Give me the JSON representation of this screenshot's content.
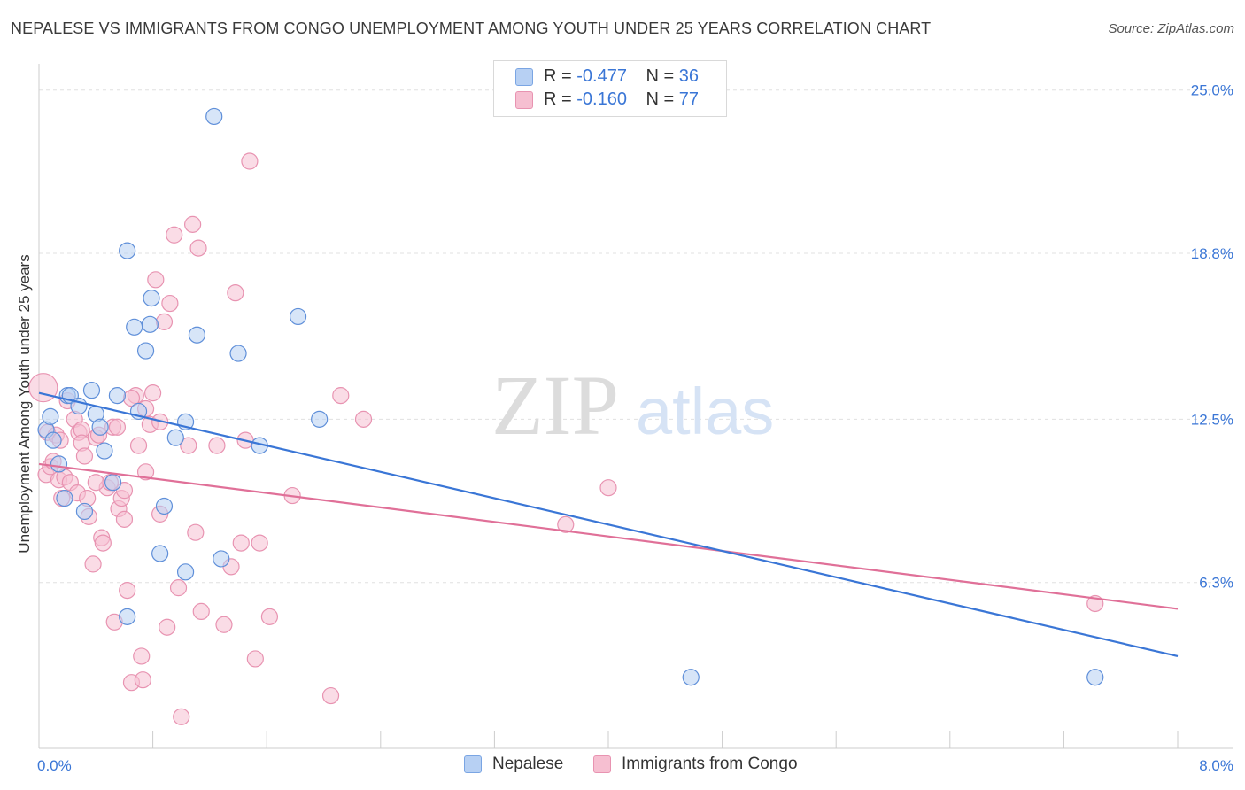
{
  "colors": {
    "blue": "#3a76d6",
    "blue_fill": "#b7d0f3",
    "pink": "#e07098",
    "pink_fill": "#f6bfd1",
    "grid": "#e0e0e0"
  },
  "chart_data": {
    "type": "scatter",
    "title": "NEPALESE VS IMMIGRANTS FROM CONGO UNEMPLOYMENT AMONG YOUTH UNDER 25 YEARS CORRELATION CHART",
    "source": "Source: ZipAtlas.com",
    "watermark": {
      "zip": "ZIP",
      "atlas": "atlas"
    },
    "xlabel": "",
    "ylabel": "Unemployment Among Youth under 25 years",
    "xlim": [
      0,
      8
    ],
    "ylim": [
      0,
      26
    ],
    "x_tick_labels": {
      "min": "0.0%",
      "max": "8.0%"
    },
    "y_ticks": [
      {
        "value": 6.3,
        "label": "6.3%"
      },
      {
        "value": 12.5,
        "label": "12.5%"
      },
      {
        "value": 18.8,
        "label": "18.8%"
      },
      {
        "value": 25.0,
        "label": "25.0%"
      }
    ],
    "legend_stats": [
      {
        "r_label": "R =",
        "r_value": "-0.477",
        "n_label": "N =",
        "n_value": "36"
      },
      {
        "r_label": "R =",
        "r_value": "-0.160",
        "n_label": "N =",
        "n_value": "77"
      }
    ],
    "series": [
      {
        "name": "Nepalese",
        "trend": {
          "x0": 0.0,
          "y0": 13.5,
          "x1": 8.0,
          "y1": 3.5
        },
        "points": [
          [
            0.05,
            12.1
          ],
          [
            0.08,
            12.6
          ],
          [
            0.1,
            11.7
          ],
          [
            0.14,
            10.8
          ],
          [
            0.18,
            9.5
          ],
          [
            0.2,
            13.4
          ],
          [
            0.22,
            13.4
          ],
          [
            0.28,
            13.0
          ],
          [
            0.32,
            9.0
          ],
          [
            0.37,
            13.6
          ],
          [
            0.4,
            12.7
          ],
          [
            0.43,
            12.2
          ],
          [
            0.46,
            11.3
          ],
          [
            0.52,
            10.1
          ],
          [
            0.55,
            13.4
          ],
          [
            0.62,
            18.9
          ],
          [
            0.62,
            5.0
          ],
          [
            0.67,
            16.0
          ],
          [
            0.7,
            12.8
          ],
          [
            0.75,
            15.1
          ],
          [
            0.78,
            16.1
          ],
          [
            0.79,
            17.1
          ],
          [
            0.85,
            7.4
          ],
          [
            0.88,
            9.2
          ],
          [
            0.96,
            11.8
          ],
          [
            1.03,
            12.4
          ],
          [
            1.03,
            6.7
          ],
          [
            1.11,
            15.7
          ],
          [
            1.23,
            24.0
          ],
          [
            1.28,
            7.2
          ],
          [
            1.4,
            15.0
          ],
          [
            1.55,
            11.5
          ],
          [
            1.82,
            16.4
          ],
          [
            1.97,
            12.5
          ],
          [
            4.58,
            2.7
          ],
          [
            7.42,
            2.7
          ]
        ]
      },
      {
        "name": "Immigrants from Congo",
        "trend": {
          "x0": 0.0,
          "y0": 10.8,
          "x1": 8.0,
          "y1": 5.3
        },
        "points": [
          [
            0.03,
            13.7
          ],
          [
            0.05,
            10.4
          ],
          [
            0.06,
            12.0
          ],
          [
            0.08,
            10.7
          ],
          [
            0.1,
            10.9
          ],
          [
            0.12,
            11.9
          ],
          [
            0.14,
            10.2
          ],
          [
            0.16,
            9.5
          ],
          [
            0.18,
            10.3
          ],
          [
            0.2,
            13.2
          ],
          [
            0.22,
            10.1
          ],
          [
            0.25,
            12.5
          ],
          [
            0.27,
            9.7
          ],
          [
            0.28,
            12.0
          ],
          [
            0.3,
            12.1
          ],
          [
            0.3,
            11.6
          ],
          [
            0.32,
            11.1
          ],
          [
            0.34,
            9.5
          ],
          [
            0.35,
            8.8
          ],
          [
            0.38,
            7.0
          ],
          [
            0.4,
            11.8
          ],
          [
            0.42,
            11.9
          ],
          [
            0.44,
            8.0
          ],
          [
            0.45,
            7.8
          ],
          [
            0.48,
            9.9
          ],
          [
            0.5,
            10.1
          ],
          [
            0.52,
            12.2
          ],
          [
            0.53,
            4.8
          ],
          [
            0.56,
            9.1
          ],
          [
            0.58,
            9.5
          ],
          [
            0.6,
            9.8
          ],
          [
            0.6,
            8.7
          ],
          [
            0.62,
            6.0
          ],
          [
            0.65,
            2.5
          ],
          [
            0.68,
            13.4
          ],
          [
            0.7,
            11.5
          ],
          [
            0.72,
            3.5
          ],
          [
            0.73,
            2.6
          ],
          [
            0.75,
            10.5
          ],
          [
            0.75,
            12.9
          ],
          [
            0.78,
            12.3
          ],
          [
            0.8,
            13.5
          ],
          [
            0.82,
            17.8
          ],
          [
            0.85,
            8.9
          ],
          [
            0.88,
            16.2
          ],
          [
            0.9,
            4.6
          ],
          [
            0.92,
            16.9
          ],
          [
            0.95,
            19.5
          ],
          [
            0.98,
            6.1
          ],
          [
            1.0,
            1.2
          ],
          [
            1.05,
            11.5
          ],
          [
            1.08,
            19.9
          ],
          [
            1.1,
            8.2
          ],
          [
            1.12,
            19.0
          ],
          [
            1.14,
            5.2
          ],
          [
            1.25,
            11.5
          ],
          [
            1.3,
            4.7
          ],
          [
            1.35,
            6.9
          ],
          [
            1.38,
            17.3
          ],
          [
            1.42,
            7.8
          ],
          [
            1.45,
            11.7
          ],
          [
            1.48,
            22.3
          ],
          [
            1.52,
            3.4
          ],
          [
            1.55,
            7.8
          ],
          [
            1.62,
            5.0
          ],
          [
            1.78,
            9.6
          ],
          [
            2.05,
            2.0
          ],
          [
            2.12,
            13.4
          ],
          [
            2.28,
            12.5
          ],
          [
            3.7,
            8.5
          ],
          [
            4.0,
            9.9
          ],
          [
            0.15,
            11.7
          ],
          [
            0.4,
            10.1
          ],
          [
            0.55,
            12.2
          ],
          [
            0.65,
            13.3
          ],
          [
            0.85,
            12.4
          ],
          [
            7.42,
            5.5
          ]
        ]
      }
    ]
  }
}
